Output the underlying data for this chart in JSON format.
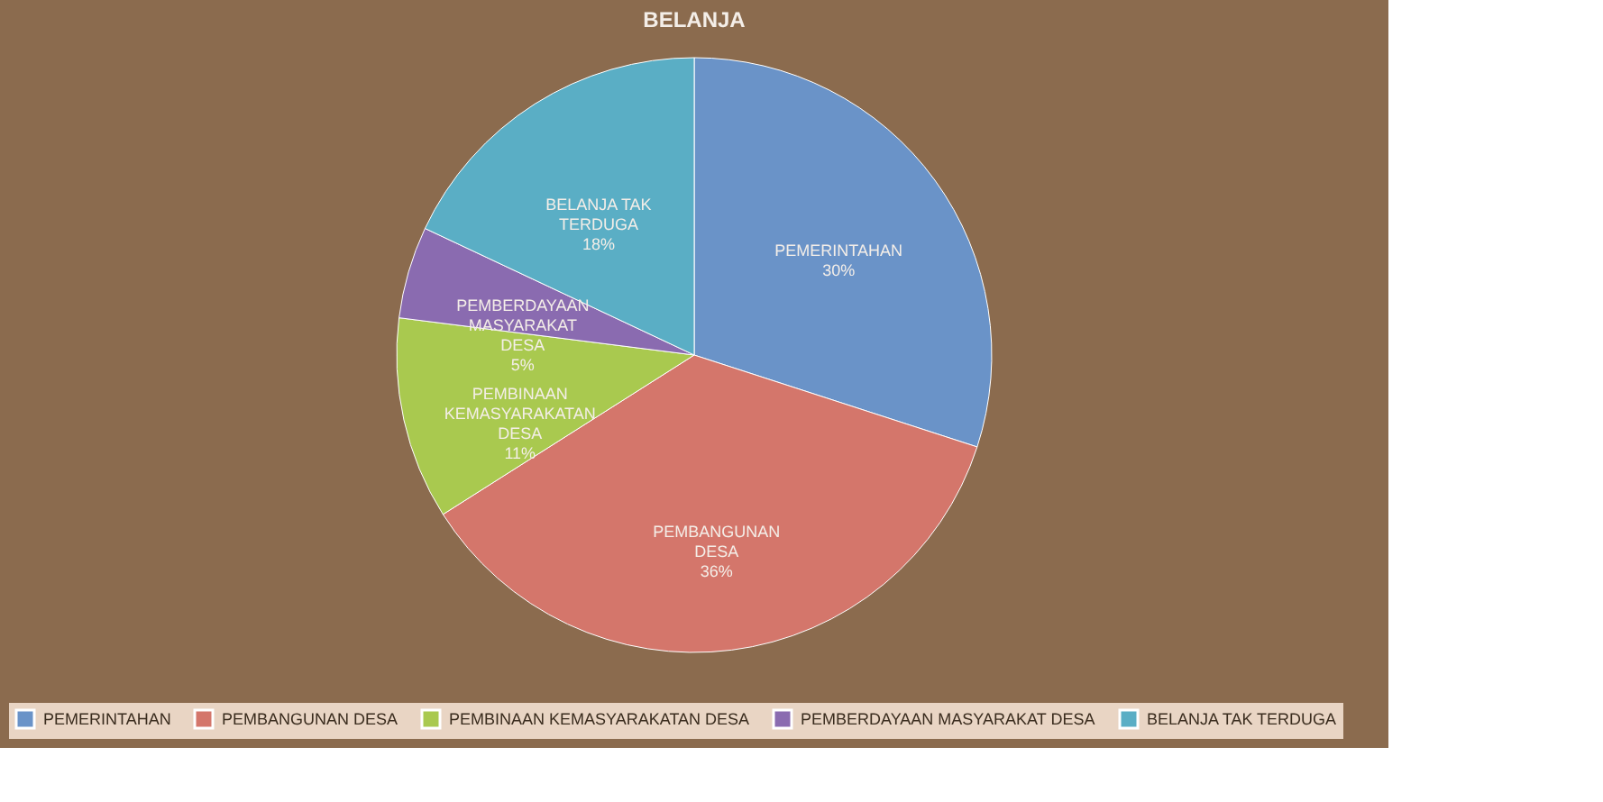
{
  "chart_data": {
    "type": "pie",
    "title": "BELANJA",
    "categories": [
      "PEMERINTAHAN",
      "PEMBANGUNAN DESA",
      "PEMBINAAN KEMASYARAKATAN DESA",
      "PEMBERDAYAAN MASYARAKAT DESA",
      "BELANJA TAK TERDUGA"
    ],
    "values": [
      30,
      36,
      11,
      5,
      18
    ],
    "value_labels": [
      "30%",
      "36%",
      "11%",
      "5%",
      "18%"
    ],
    "colors": [
      "#6a93c8",
      "#d4766b",
      "#a9c94f",
      "#8a6bb0",
      "#5aaec5"
    ],
    "legend": "bottom"
  }
}
